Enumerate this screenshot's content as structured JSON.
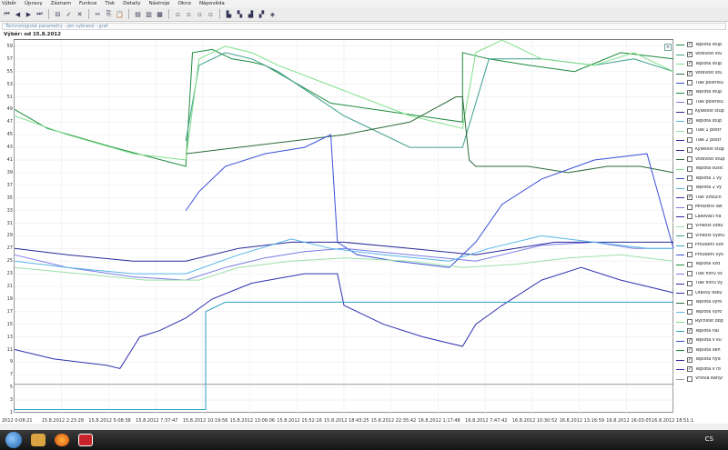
{
  "menu": [
    "Výběr",
    "Úpravy",
    "Záznam",
    "Funkce",
    "Tisk",
    "Detaily",
    "Nástroje",
    "Okno",
    "Nápověda"
  ],
  "toolbar_icons": [
    "first-icon",
    "prev-icon",
    "next-icon",
    "last-icon",
    "zoom-out-icon",
    "check-icon",
    "close-icon",
    "cut-icon",
    "copy-icon",
    "paste-icon",
    "window-1-icon",
    "window-2-icon",
    "window-3-icon",
    "doc-1-icon",
    "doc-2-icon",
    "doc-3-icon",
    "doc-4-icon",
    "chart-1-icon",
    "chart-2-icon",
    "chart-3-icon",
    "chart-4-icon",
    "chart-5-icon"
  ],
  "subtitle": "Technologické parametry - jen vybrané - graf",
  "range_label": "Výběr: od 15.8.2012",
  "close_glyph": "×",
  "taskbar": {
    "tray_text": "CS"
  },
  "chart_data": {
    "type": "line",
    "ylim": [
      1,
      60
    ],
    "y_ticks": [
      "59",
      "57",
      "55",
      "53",
      "51",
      "49",
      "47",
      "45",
      "43",
      "41",
      "39",
      "37",
      "35",
      "33",
      "31",
      "29",
      "27",
      "25",
      "23",
      "21",
      "19",
      "17",
      "15",
      "13",
      "11",
      "9",
      "7",
      "5",
      "3",
      "1"
    ],
    "x_ticks": [
      "2012 0:08:21",
      "15.8.2012 2:23:28",
      "15.8.2012 5:08:38",
      "15.8.2012 7:37:47",
      "15.8.2012 10:19:56",
      "15.8.2012 13:06:06",
      "15.8.2012 15:52:16",
      "15.8.2012 18:43:25",
      "15.8.2012 22:35:42",
      "16.8.2012 1:17:48",
      "16.8.2012 7:47:42",
      "16.8.2012 10:30:52",
      "16.8.2012 13:16:59",
      "16.8.2012 16:03:05",
      "16.8.2012 18:51:1"
    ],
    "grid": true,
    "series": [
      {
        "name": "Teplota stup",
        "color": "#1a8a3c",
        "checked": true,
        "points": [
          [
            0,
            49
          ],
          [
            0.05,
            46
          ],
          [
            0.15,
            43
          ],
          [
            0.26,
            40
          ],
          [
            0.27,
            58
          ],
          [
            0.3,
            58.5
          ],
          [
            0.33,
            57
          ],
          [
            0.36,
            56.5
          ],
          [
            0.38,
            56
          ],
          [
            0.48,
            50
          ],
          [
            0.68,
            47
          ],
          [
            0.68,
            58
          ],
          [
            0.72,
            57
          ],
          [
            0.78,
            56
          ],
          [
            0.85,
            55
          ],
          [
            0.92,
            58
          ],
          [
            1,
            57
          ]
        ]
      },
      {
        "name": "Vodivost stu",
        "color": "#3d9e8c",
        "checked": true,
        "points": [
          [
            0.26,
            44
          ],
          [
            0.28,
            56
          ],
          [
            0.32,
            58
          ],
          [
            0.36,
            57
          ],
          [
            0.38,
            56
          ],
          [
            0.4,
            55
          ],
          [
            0.5,
            48
          ],
          [
            0.6,
            43
          ],
          [
            0.68,
            43
          ],
          [
            0.72,
            57
          ],
          [
            0.8,
            57
          ],
          [
            0.88,
            56
          ],
          [
            0.94,
            57
          ],
          [
            1,
            55
          ]
        ]
      },
      {
        "name": "Teplota stup",
        "color": "#7fe08a",
        "checked": true,
        "points": [
          [
            0,
            48
          ],
          [
            0.08,
            45
          ],
          [
            0.18,
            42
          ],
          [
            0.26,
            41
          ],
          [
            0.28,
            57
          ],
          [
            0.32,
            59
          ],
          [
            0.36,
            58
          ],
          [
            0.4,
            56
          ],
          [
            0.5,
            52
          ],
          [
            0.6,
            48
          ],
          [
            0.68,
            46
          ],
          [
            0.7,
            58
          ],
          [
            0.74,
            60
          ],
          [
            0.8,
            57
          ],
          [
            0.88,
            56
          ],
          [
            0.94,
            58
          ],
          [
            1,
            55
          ]
        ]
      },
      {
        "name": "Vodivost stu",
        "color": "#2b6b3a",
        "checked": true,
        "points": [
          [
            0.26,
            42
          ],
          [
            0.34,
            43
          ],
          [
            0.42,
            44
          ],
          [
            0.5,
            45
          ],
          [
            0.6,
            47
          ],
          [
            0.67,
            51
          ],
          [
            0.68,
            51
          ],
          [
            0.69,
            41
          ],
          [
            0.7,
            40
          ],
          [
            0.78,
            40
          ],
          [
            0.84,
            39
          ],
          [
            0.9,
            40
          ],
          [
            0.95,
            40
          ],
          [
            1,
            39
          ]
        ]
      },
      {
        "name": "Tlak postřiku",
        "color": "#3b4fd8",
        "checked": false,
        "points": [
          [
            0.26,
            33
          ],
          [
            0.28,
            36
          ],
          [
            0.32,
            40
          ],
          [
            0.38,
            42
          ],
          [
            0.44,
            43
          ],
          [
            0.48,
            45
          ],
          [
            0.49,
            28
          ],
          [
            0.52,
            26
          ],
          [
            0.58,
            25
          ],
          [
            0.66,
            24
          ],
          [
            0.7,
            28
          ],
          [
            0.74,
            34
          ],
          [
            0.8,
            38
          ],
          [
            0.88,
            41
          ],
          [
            0.96,
            42
          ],
          [
            1,
            27
          ]
        ]
      },
      {
        "name": "Tlak postřiku",
        "color": "#7a7ae6",
        "checked": false,
        "points": [
          [
            0,
            26
          ],
          [
            0.08,
            24
          ],
          [
            0.18,
            22.5
          ],
          [
            0.26,
            22
          ],
          [
            0.32,
            24
          ],
          [
            0.38,
            25.5
          ],
          [
            0.44,
            26.5
          ],
          [
            0.5,
            27
          ],
          [
            0.6,
            26
          ],
          [
            0.7,
            25
          ],
          [
            0.74,
            26
          ],
          [
            0.8,
            27.5
          ],
          [
            0.88,
            28
          ],
          [
            0.94,
            27
          ],
          [
            1,
            27
          ]
        ]
      },
      {
        "name": "Kyselost stup",
        "color": "#29299a",
        "checked": false,
        "points": [
          [
            0,
            27
          ],
          [
            0.08,
            26
          ],
          [
            0.18,
            25
          ],
          [
            0.26,
            25
          ],
          [
            0.34,
            27
          ],
          [
            0.42,
            28
          ],
          [
            0.5,
            28
          ],
          [
            0.6,
            27
          ],
          [
            0.7,
            26
          ],
          [
            0.76,
            27
          ],
          [
            0.82,
            28
          ],
          [
            0.9,
            28
          ],
          [
            1,
            28
          ]
        ]
      },
      {
        "name": "Teplota stup",
        "color": "#55b4e8",
        "checked": true,
        "points": [
          [
            0,
            25
          ],
          [
            0.08,
            24
          ],
          [
            0.18,
            23
          ],
          [
            0.26,
            23
          ],
          [
            0.34,
            26
          ],
          [
            0.42,
            28.5
          ],
          [
            0.48,
            27
          ],
          [
            0.56,
            26
          ],
          [
            0.66,
            25
          ],
          [
            0.72,
            27
          ],
          [
            0.8,
            29
          ],
          [
            0.88,
            28
          ],
          [
            0.96,
            27
          ],
          [
            1,
            27
          ]
        ]
      },
      {
        "name": "Tlak postřiku",
        "color": "#9be0a8",
        "checked": false,
        "points": [
          [
            0,
            24
          ],
          [
            0.1,
            23
          ],
          [
            0.2,
            22
          ],
          [
            0.28,
            22
          ],
          [
            0.34,
            24
          ],
          [
            0.42,
            25
          ],
          [
            0.5,
            25.5
          ],
          [
            0.6,
            25
          ],
          [
            0.68,
            24
          ],
          [
            0.76,
            24.5
          ],
          [
            0.84,
            25.5
          ],
          [
            0.92,
            26
          ],
          [
            1,
            25
          ]
        ]
      },
      {
        "name": "Kyselost stup",
        "color": "#3030b0",
        "checked": false,
        "points": [
          [
            0,
            11
          ],
          [
            0.06,
            9.5
          ],
          [
            0.14,
            8.5
          ],
          [
            0.16,
            8
          ],
          [
            0.19,
            13
          ],
          [
            0.22,
            14
          ],
          [
            0.26,
            16
          ],
          [
            0.3,
            19
          ],
          [
            0.36,
            21.5
          ],
          [
            0.44,
            23
          ],
          [
            0.49,
            23
          ],
          [
            0.5,
            18
          ],
          [
            0.56,
            15
          ],
          [
            0.62,
            13
          ],
          [
            0.68,
            11.5
          ],
          [
            0.7,
            15
          ],
          [
            0.74,
            18
          ],
          [
            0.8,
            22
          ],
          [
            0.86,
            24
          ],
          [
            0.92,
            22
          ],
          [
            1,
            20
          ]
        ]
      },
      {
        "name": "Teplota hal",
        "color": "#2aa2c8",
        "checked": true,
        "points": [
          [
            0,
            1.5
          ],
          [
            0.29,
            1.5
          ],
          [
            0.29,
            17
          ],
          [
            0.32,
            18.5
          ],
          [
            0.5,
            18.5
          ],
          [
            0.68,
            18.5
          ],
          [
            0.7,
            18.5
          ],
          [
            1,
            18.5
          ]
        ]
      },
      {
        "name": "Vrstva banyi",
        "color": "#999999",
        "checked": false,
        "points": [
          [
            0,
            5.5
          ],
          [
            0.1,
            5.5
          ],
          [
            0.2,
            5.5
          ],
          [
            0.3,
            5.5
          ],
          [
            0.4,
            5.5
          ],
          [
            0.5,
            5.5
          ],
          [
            0.6,
            5.5
          ],
          [
            0.7,
            5.5
          ],
          [
            0.8,
            5.5
          ],
          [
            0.9,
            5.5
          ],
          [
            1,
            5.5
          ]
        ]
      }
    ]
  },
  "legend": [
    {
      "label": "Teplota stup",
      "checked": true,
      "color": "#1a8a3c"
    },
    {
      "label": "Vodivost stu",
      "checked": true,
      "color": "#3d9e8c"
    },
    {
      "label": "Teplota stup",
      "checked": true,
      "color": "#7fe08a"
    },
    {
      "label": "Vodivost stu",
      "checked": true,
      "color": "#2b6b3a"
    },
    {
      "label": "Tlak postřiku",
      "checked": false,
      "color": "#3b4fd8"
    },
    {
      "label": "Teplota stup",
      "checked": true,
      "color": "#1a8a3c"
    },
    {
      "label": "Tlak postřiku",
      "checked": false,
      "color": "#7a7ae6"
    },
    {
      "label": "Kyselost stup",
      "checked": false,
      "color": "#29299a"
    },
    {
      "label": "Teplota stup",
      "checked": true,
      "color": "#55b4e8"
    },
    {
      "label": "Tlak 1 postř",
      "checked": false,
      "color": "#9be0a8"
    },
    {
      "label": "Tlak 2 postř",
      "checked": false,
      "color": "#3030b0"
    },
    {
      "label": "Kyselost stup",
      "checked": false,
      "color": "#29299a"
    },
    {
      "label": "Vodivost stup",
      "checked": false,
      "color": "#2b6b3a"
    },
    {
      "label": "Teplota sušic",
      "checked": false,
      "color": "#7fe08a"
    },
    {
      "label": "Teplota 1 vy",
      "checked": false,
      "color": "#3b4fd8"
    },
    {
      "label": "Teplota 2 vy",
      "checked": false,
      "color": "#55b4e8"
    },
    {
      "label": "Tlak vzduch",
      "checked": true,
      "color": "#3030b0"
    },
    {
      "label": "Množství lak",
      "checked": false,
      "color": "#7a7ae6"
    },
    {
      "label": "Lakovací na",
      "checked": false,
      "color": "#29299a"
    },
    {
      "label": "Vlhkost vzdu",
      "checked": false,
      "color": "#9be0a8"
    },
    {
      "label": "Vlhkost výstu",
      "checked": false,
      "color": "#3d9e8c"
    },
    {
      "label": "Proudění vzd",
      "checked": false,
      "color": "#2aa2c8"
    },
    {
      "label": "Proudění výs",
      "checked": false,
      "color": "#3b4fd8"
    },
    {
      "label": "Teplota vzd",
      "checked": false,
      "color": "#1a8a3c"
    },
    {
      "label": "Tlak filtrů vz",
      "checked": false,
      "color": "#7a7ae6"
    },
    {
      "label": "Tlak filtrů vý",
      "checked": false,
      "color": "#29299a"
    },
    {
      "label": "Otáčky dsku",
      "checked": false,
      "color": "#3030b0"
    },
    {
      "label": "Teplota výro",
      "checked": false,
      "color": "#2b6b3a"
    },
    {
      "label": "Teplota výro",
      "checked": false,
      "color": "#55b4e8"
    },
    {
      "label": "Rychlost dop",
      "checked": false,
      "color": "#7fe08a"
    },
    {
      "label": "Teplota hal",
      "checked": true,
      "color": "#2aa2c8"
    },
    {
      "label": "Teplota v ku",
      "checked": true,
      "color": "#3b4fd8"
    },
    {
      "label": "Teplota ven",
      "checked": true,
      "color": "#1a8a3c"
    },
    {
      "label": "Teplota hyd",
      "checked": true,
      "color": "#29299a"
    },
    {
      "label": "Teplota v ro",
      "checked": true,
      "color": "#3030b0"
    },
    {
      "label": "Vrstva banyi",
      "checked": false,
      "color": "#999999"
    }
  ]
}
